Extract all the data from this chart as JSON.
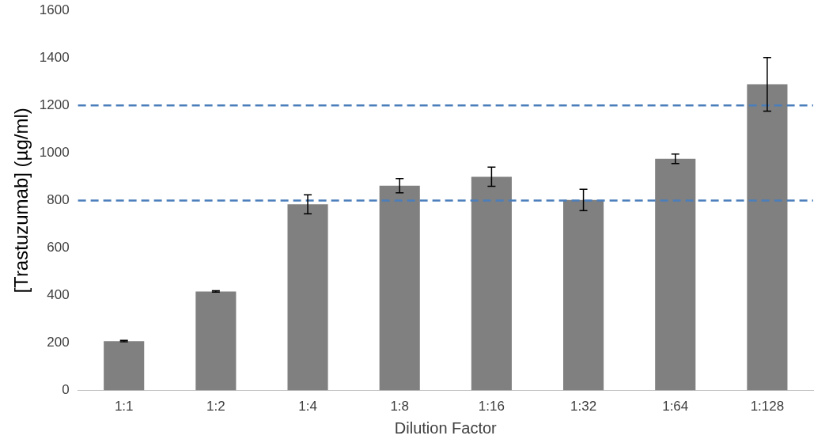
{
  "chart_data": {
    "type": "bar",
    "xlabel": "Dilution Factor",
    "ylabel": "[Trastuzumab] (µg/ml)",
    "categories": [
      "1:1",
      "1:2",
      "1:4",
      "1:8",
      "1:16",
      "1:32",
      "1:64",
      "1:128"
    ],
    "values": [
      208,
      417,
      784,
      862,
      900,
      802,
      975,
      1289
    ],
    "errors": [
      3,
      3,
      40,
      30,
      40,
      45,
      20,
      113
    ],
    "color": "#808080",
    "ylim": [
      0,
      1600
    ],
    "yticks": [
      0,
      200,
      400,
      600,
      800,
      1000,
      1200,
      1400,
      1600
    ],
    "ref_lines": [
      {
        "axis": "y",
        "value": 1200,
        "color": "#4a7ebb",
        "line_style": "dashed"
      },
      {
        "axis": "y",
        "value": 800,
        "color": "#4a7ebb",
        "line_style": "dashed"
      }
    ],
    "grid": false,
    "legend": false
  }
}
